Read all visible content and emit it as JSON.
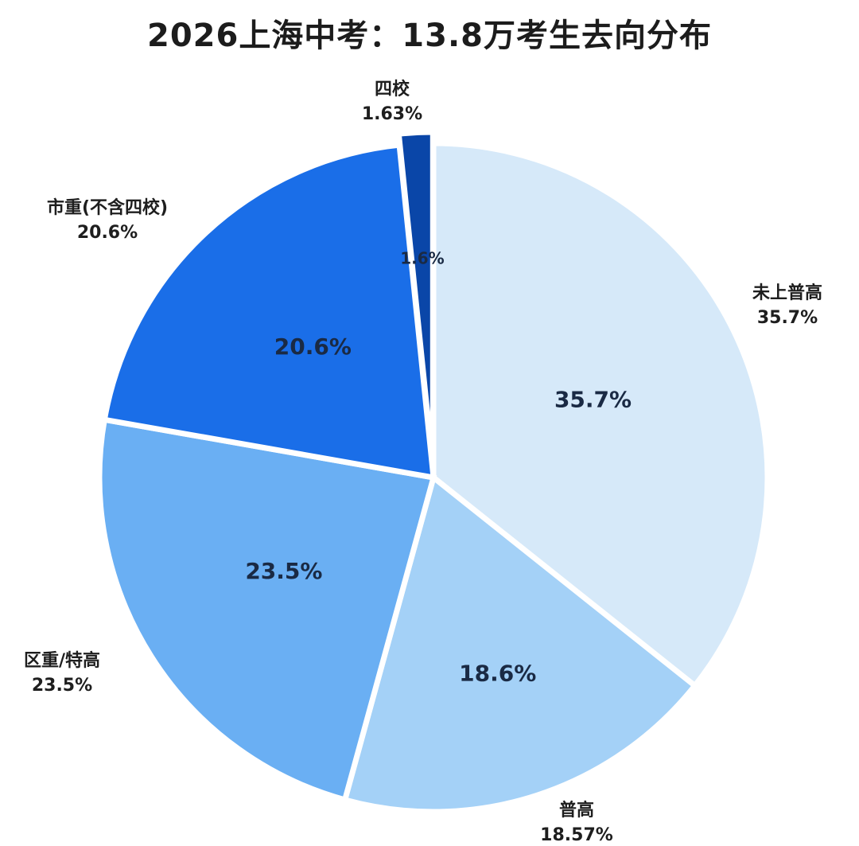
{
  "chart_data": {
    "type": "pie",
    "title": "2026上海中考：13.8万考生去向分布",
    "start_angle_deg": 0,
    "direction": "clockwise",
    "slices": [
      {
        "label": "未上普高",
        "value": 35.7,
        "inner_label": "35.7%",
        "outer_value": "35.7%",
        "color": "#d6e9f9"
      },
      {
        "label": "普高",
        "value": 18.57,
        "inner_label": "18.6%",
        "outer_value": "18.57%",
        "color": "#a4d1f7"
      },
      {
        "label": "区重/特高",
        "value": 23.5,
        "inner_label": "23.5%",
        "outer_value": "23.5%",
        "color": "#6aaff3"
      },
      {
        "label": "市重(不含四校)",
        "value": 20.6,
        "inner_label": "20.6%",
        "outer_value": "20.6%",
        "color": "#1a6ee8"
      },
      {
        "label": "四校",
        "value": 1.63,
        "inner_label": "1.6%",
        "outer_value": "1.63%",
        "color": "#0a46a8"
      }
    ]
  }
}
